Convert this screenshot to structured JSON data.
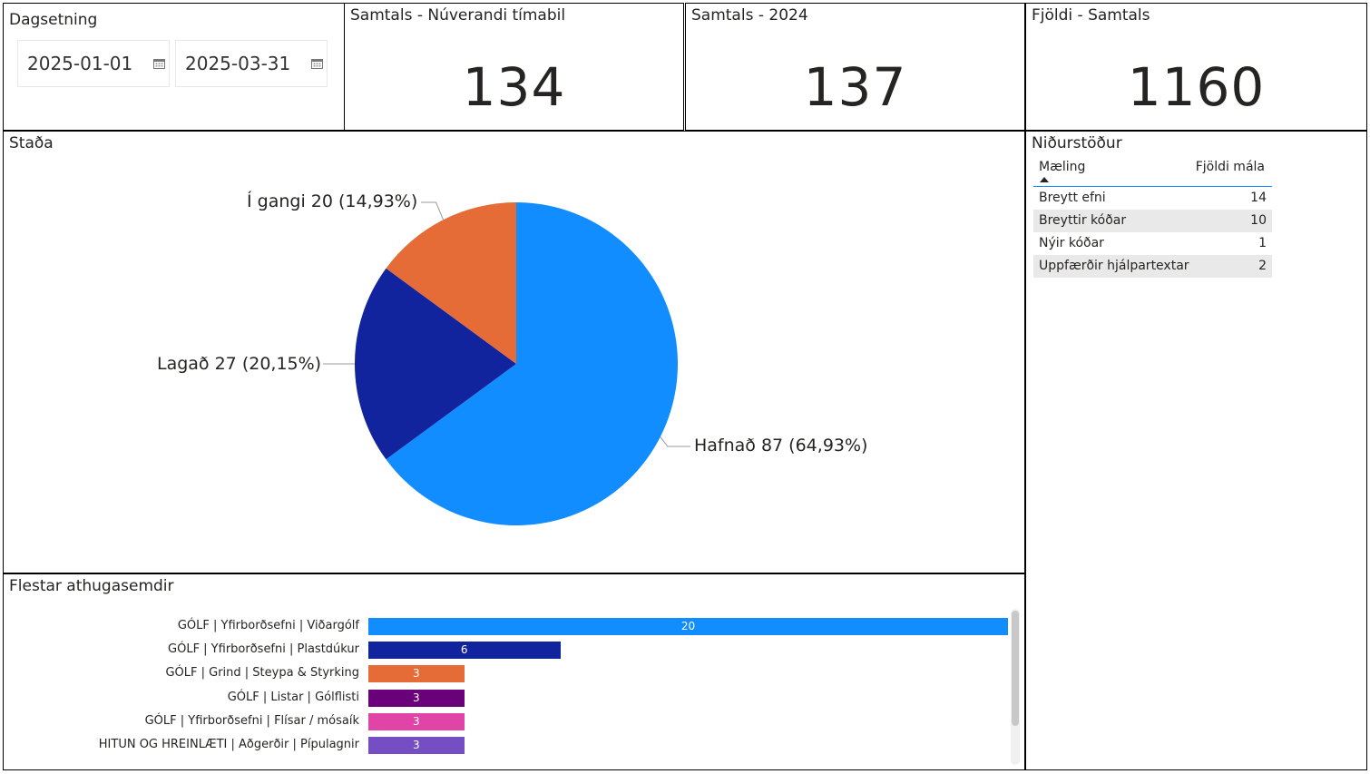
{
  "filter": {
    "title": "Dagsetning",
    "start_date": "2025-01-01",
    "end_date": "2025-03-31"
  },
  "kpis": [
    {
      "title": "Samtals - Núverandi tímabil",
      "value": "134"
    },
    {
      "title": "Samtals - 2024",
      "value": "137"
    },
    {
      "title": "Fjöldi - Samtals",
      "value": "1160"
    }
  ],
  "pie": {
    "title": "Staða"
  },
  "results": {
    "title": "Niðurstöður",
    "columns": [
      "Mæling",
      "Fjöldi mála"
    ],
    "rows": [
      {
        "label": "Breytt efni",
        "value": "14"
      },
      {
        "label": "Breyttir kóðar",
        "value": "10"
      },
      {
        "label": "Nýir kóðar",
        "value": "1"
      },
      {
        "label": "Uppfærðir hjálpartextar",
        "value": "2"
      }
    ]
  },
  "bars": {
    "title": "Flestar athugasemdir"
  },
  "chart_data": [
    {
      "type": "pie",
      "title": "Staða",
      "labels": [
        "Hafnað",
        "Lagað",
        "Í gangi"
      ],
      "values": [
        87,
        27,
        20
      ],
      "percent_labels": [
        "64,93%",
        "20,15%",
        "14,93%"
      ],
      "colors": [
        "#118dff",
        "#12239e",
        "#e66c37"
      ]
    },
    {
      "type": "bar",
      "orientation": "horizontal",
      "title": "Flestar athugasemdir",
      "categories": [
        "GÓLF | Yfirborðsefni | Viðargólf",
        "GÓLF | Yfirborðsefni | Plastdúkur",
        "GÓLF | Grind | Steypa & Styrking",
        "GÓLF | Listar | Gólflisti",
        "GÓLF | Yfirborðsefni | Flísar / mósaík",
        "HITUN OG HREINLÆTI | Aðgerðir | Pípulagnir"
      ],
      "values": [
        20,
        6,
        3,
        3,
        3,
        3
      ],
      "colors": [
        "#118dff",
        "#12239e",
        "#e66c37",
        "#6b007b",
        "#e044a7",
        "#744ec2"
      ],
      "xlim": [
        0,
        20
      ]
    }
  ]
}
